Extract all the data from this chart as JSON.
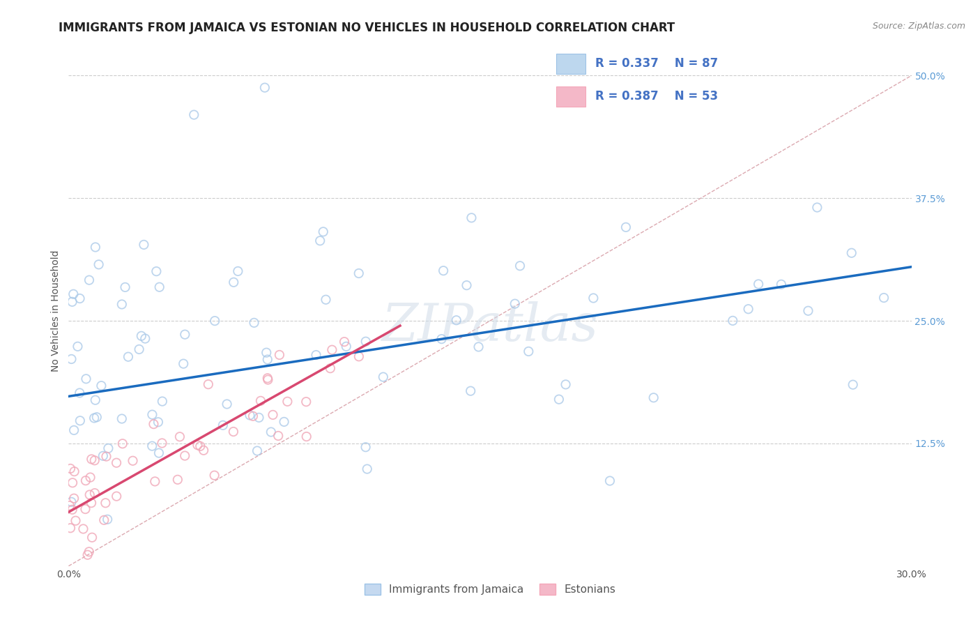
{
  "title": "IMMIGRANTS FROM JAMAICA VS ESTONIAN NO VEHICLES IN HOUSEHOLD CORRELATION CHART",
  "source_text": "Source: ZipAtlas.com",
  "ylabel": "No Vehicles in Household",
  "x_min": 0.0,
  "x_max": 0.3,
  "y_min": 0.0,
  "y_max": 0.52,
  "r_blue": 0.337,
  "n_blue": 87,
  "r_pink": 0.387,
  "n_pink": 53,
  "blue_color": "#a8c8e8",
  "pink_color": "#f0a8b8",
  "blue_line_color": "#1a6bbf",
  "pink_line_color": "#d84870",
  "diagonal_color": "#d8a0a8",
  "watermark": "ZIPatlas",
  "legend_label_blue": "Immigrants from Jamaica",
  "legend_label_pink": "Estonians",
  "title_fontsize": 12,
  "axis_label_fontsize": 10,
  "tick_fontsize": 10,
  "legend_r_color": "#4472c4",
  "background_color": "#ffffff",
  "blue_line_start_y": 0.173,
  "blue_line_end_y": 0.305,
  "pink_line_start_y": 0.055,
  "pink_line_end_y": 0.245,
  "pink_line_end_x": 0.118
}
